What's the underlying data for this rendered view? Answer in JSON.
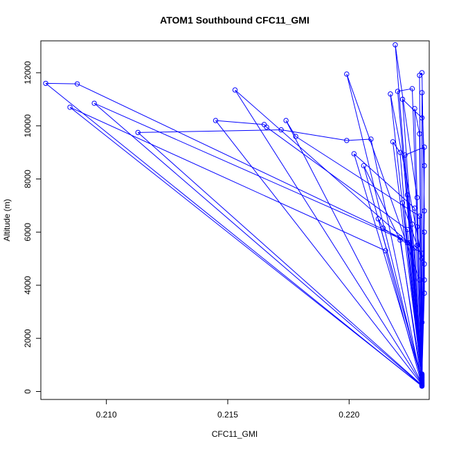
{
  "chart_data": {
    "type": "line",
    "title": "ATOM1 Southbound CFC11_GMI",
    "xlabel": "CFC11_GMI",
    "ylabel": "Altitude (m)",
    "xlim": [
      0.2073,
      0.2233
    ],
    "ylim": [
      -300,
      13200
    ],
    "x_ticks": [
      0.21,
      0.215,
      0.22
    ],
    "x_tick_labels": [
      "0.210",
      "0.215",
      "0.220"
    ],
    "y_ticks": [
      0,
      2000,
      4000,
      6000,
      8000,
      10000,
      12000
    ],
    "y_tick_labels": [
      "0",
      "2000",
      "4000",
      "6000",
      "8000",
      "10000",
      "12000"
    ],
    "grid": false,
    "series": [
      {
        "color": "#0000ff",
        "marker": "open-circle",
        "points": [
          [
            0.223,
            200
          ],
          [
            0.2075,
            11600
          ],
          [
            0.2088,
            11580
          ],
          [
            0.2221,
            5800
          ],
          [
            0.223,
            210
          ],
          [
            0.2085,
            10700
          ],
          [
            0.2215,
            5300
          ],
          [
            0.223,
            220
          ],
          [
            0.2095,
            10850
          ],
          [
            0.2225,
            5600
          ],
          [
            0.223,
            240
          ],
          [
            0.2113,
            9750
          ],
          [
            0.2172,
            9850
          ],
          [
            0.2199,
            9450
          ],
          [
            0.2209,
            9500
          ],
          [
            0.223,
            260
          ],
          [
            0.2145,
            10200
          ],
          [
            0.2165,
            10050
          ],
          [
            0.2166,
            9950
          ],
          [
            0.2224,
            6100
          ],
          [
            0.223,
            280
          ],
          [
            0.2153,
            11350
          ],
          [
            0.2227,
            5400
          ],
          [
            0.223,
            300
          ],
          [
            0.2174,
            10200
          ],
          [
            0.2178,
            9600
          ],
          [
            0.2229,
            6600
          ],
          [
            0.223,
            320
          ],
          [
            0.2199,
            11950
          ],
          [
            0.2229,
            4200
          ],
          [
            0.223,
            340
          ],
          [
            0.2219,
            13050
          ],
          [
            0.2228,
            7300
          ],
          [
            0.223,
            360
          ],
          [
            0.2217,
            11200
          ],
          [
            0.223,
            5000
          ],
          [
            0.223,
            380
          ],
          [
            0.222,
            11300
          ],
          [
            0.2226,
            11400
          ],
          [
            0.2228,
            6200
          ],
          [
            0.223,
            400
          ],
          [
            0.2222,
            11000
          ],
          [
            0.223,
            10300
          ],
          [
            0.223,
            420
          ],
          [
            0.2229,
            11900
          ],
          [
            0.223,
            12000
          ],
          [
            0.2231,
            6800
          ],
          [
            0.223,
            440
          ],
          [
            0.2202,
            8950
          ],
          [
            0.2227,
            6900
          ],
          [
            0.223,
            460
          ],
          [
            0.2206,
            8500
          ],
          [
            0.2221,
            5700
          ],
          [
            0.223,
            480
          ],
          [
            0.2212,
            6500
          ],
          [
            0.2214,
            6150
          ],
          [
            0.223,
            5200
          ],
          [
            0.223,
            500
          ],
          [
            0.2218,
            9400
          ],
          [
            0.2221,
            9000
          ],
          [
            0.2224,
            5600
          ],
          [
            0.223,
            520
          ],
          [
            0.2223,
            8900
          ],
          [
            0.2231,
            9200
          ],
          [
            0.223,
            540
          ],
          [
            0.223,
            11250
          ],
          [
            0.2231,
            8500
          ],
          [
            0.223,
            560
          ],
          [
            0.2227,
            10650
          ],
          [
            0.2229,
            9700
          ],
          [
            0.223,
            580
          ],
          [
            0.2224,
            7400
          ],
          [
            0.2226,
            6300
          ],
          [
            0.223,
            600
          ],
          [
            0.2222,
            7100
          ],
          [
            0.2228,
            5500
          ],
          [
            0.2231,
            4800
          ],
          [
            0.223,
            620
          ],
          [
            0.2231,
            6000
          ],
          [
            0.2231,
            4200
          ],
          [
            0.2231,
            3700
          ],
          [
            0.223,
            640
          ],
          [
            0.223,
            2600
          ],
          [
            0.223,
            660
          ]
        ]
      }
    ]
  }
}
